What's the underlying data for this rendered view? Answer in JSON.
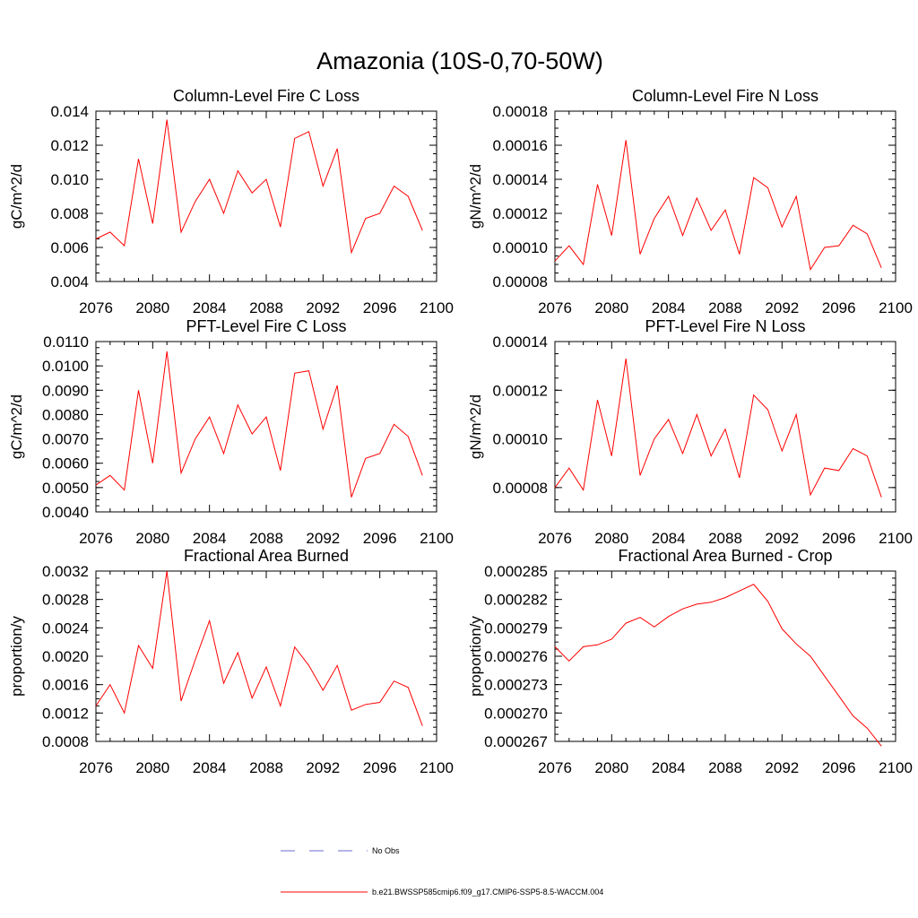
{
  "title": "Amazonia (10S-0,70-50W)",
  "colors": {
    "series": "#ff0000",
    "obs": "#6b6bd6",
    "axis": "#000000"
  },
  "legend": {
    "obs_label": "No Obs",
    "series_label": "b.e21.BWSSP585cmip6.f09_g17.CMIP6-SSP5-8.5-WACCM.004"
  },
  "chart_data": [
    {
      "type": "line",
      "title": "Column-Level Fire C Loss",
      "xlabel": "",
      "ylabel": "gC/m^2/d",
      "xlim": [
        2076,
        2100
      ],
      "ylim": [
        0.004,
        0.014
      ],
      "xticks": [
        2076,
        2080,
        2084,
        2088,
        2092,
        2096,
        2100
      ],
      "xtick_labels": [
        "2076",
        "2080",
        "2084",
        "2088",
        "2092",
        "2096",
        "2100"
      ],
      "yticks": [
        0.004,
        0.006,
        0.008,
        0.01,
        0.012,
        0.014
      ],
      "ytick_labels": [
        "0.004",
        "0.006",
        "0.008",
        "0.010",
        "0.012",
        "0.014"
      ],
      "x": [
        2076,
        2077,
        2078,
        2079,
        2080,
        2081,
        2082,
        2083,
        2084,
        2085,
        2086,
        2087,
        2088,
        2089,
        2090,
        2091,
        2092,
        2093,
        2094,
        2095,
        2096,
        2097,
        2098,
        2099
      ],
      "series": [
        {
          "name": "b.e21.BWSSP585cmip6.f09_g17.CMIP6-SSP5-8.5-WACCM.004",
          "values": [
            0.0065,
            0.0069,
            0.0061,
            0.0112,
            0.0074,
            0.0135,
            0.0069,
            0.0087,
            0.01,
            0.008,
            0.0105,
            0.0092,
            0.01,
            0.0072,
            0.0124,
            0.0128,
            0.0096,
            0.0118,
            0.0057,
            0.0077,
            0.008,
            0.0096,
            0.009,
            0.007
          ]
        }
      ]
    },
    {
      "type": "line",
      "title": "Column-Level Fire N Loss",
      "xlabel": "",
      "ylabel": "gN/m^2/d",
      "xlim": [
        2076,
        2100
      ],
      "ylim": [
        8e-05,
        0.00018
      ],
      "xticks": [
        2076,
        2080,
        2084,
        2088,
        2092,
        2096,
        2100
      ],
      "xtick_labels": [
        "2076",
        "2080",
        "2084",
        "2088",
        "2092",
        "2096",
        "2100"
      ],
      "yticks": [
        8e-05,
        0.0001,
        0.00012,
        0.00014,
        0.00016,
        0.00018
      ],
      "ytick_labels": [
        "0.00008",
        "0.00010",
        "0.00012",
        "0.00014",
        "0.00016",
        "0.00018"
      ],
      "x": [
        2076,
        2077,
        2078,
        2079,
        2080,
        2081,
        2082,
        2083,
        2084,
        2085,
        2086,
        2087,
        2088,
        2089,
        2090,
        2091,
        2092,
        2093,
        2094,
        2095,
        2096,
        2097,
        2098,
        2099
      ],
      "series": [
        {
          "name": "b.e21.BWSSP585cmip6.f09_g17.CMIP6-SSP5-8.5-WACCM.004",
          "values": [
            9.2e-05,
            0.000101,
            9e-05,
            0.000137,
            0.000107,
            0.000163,
            9.6e-05,
            0.000117,
            0.00013,
            0.000107,
            0.000129,
            0.00011,
            0.000122,
            9.6e-05,
            0.000141,
            0.000135,
            0.000112,
            0.00013,
            8.7e-05,
            0.0001,
            0.000101,
            0.000113,
            0.000108,
            8.8e-05
          ]
        }
      ]
    },
    {
      "type": "line",
      "title": "PFT-Level Fire C Loss",
      "xlabel": "",
      "ylabel": "gC/m^2/d",
      "xlim": [
        2076,
        2100
      ],
      "ylim": [
        0.004,
        0.011
      ],
      "xticks": [
        2076,
        2080,
        2084,
        2088,
        2092,
        2096,
        2100
      ],
      "xtick_labels": [
        "2076",
        "2080",
        "2084",
        "2088",
        "2092",
        "2096",
        "2100"
      ],
      "yticks": [
        0.004,
        0.005,
        0.006,
        0.007,
        0.008,
        0.009,
        0.01,
        0.011
      ],
      "ytick_labels": [
        "0.0040",
        "0.0050",
        "0.0060",
        "0.0070",
        "0.0080",
        "0.0090",
        "0.0100",
        "0.0110"
      ],
      "x": [
        2076,
        2077,
        2078,
        2079,
        2080,
        2081,
        2082,
        2083,
        2084,
        2085,
        2086,
        2087,
        2088,
        2089,
        2090,
        2091,
        2092,
        2093,
        2094,
        2095,
        2096,
        2097,
        2098,
        2099
      ],
      "series": [
        {
          "name": "b.e21.BWSSP585cmip6.f09_g17.CMIP6-SSP5-8.5-WACCM.004",
          "values": [
            0.0051,
            0.0055,
            0.0049,
            0.009,
            0.006,
            0.0106,
            0.0056,
            0.007,
            0.0079,
            0.0064,
            0.0084,
            0.0072,
            0.0079,
            0.0057,
            0.0097,
            0.0098,
            0.0074,
            0.0092,
            0.0046,
            0.0062,
            0.0064,
            0.0076,
            0.0071,
            0.0055
          ]
        }
      ]
    },
    {
      "type": "line",
      "title": "PFT-Level Fire N Loss",
      "xlabel": "",
      "ylabel": "gN/m^2/d",
      "xlim": [
        2076,
        2100
      ],
      "ylim": [
        7e-05,
        0.00014
      ],
      "xticks": [
        2076,
        2080,
        2084,
        2088,
        2092,
        2096,
        2100
      ],
      "xtick_labels": [
        "2076",
        "2080",
        "2084",
        "2088",
        "2092",
        "2096",
        "2100"
      ],
      "yticks": [
        8e-05,
        0.0001,
        0.00012,
        0.00014
      ],
      "ytick_labels": [
        "0.00008",
        "0.00010",
        "0.00012",
        "0.00014"
      ],
      "x": [
        2076,
        2077,
        2078,
        2079,
        2080,
        2081,
        2082,
        2083,
        2084,
        2085,
        2086,
        2087,
        2088,
        2089,
        2090,
        2091,
        2092,
        2093,
        2094,
        2095,
        2096,
        2097,
        2098,
        2099
      ],
      "series": [
        {
          "name": "b.e21.BWSSP585cmip6.f09_g17.CMIP6-SSP5-8.5-WACCM.004",
          "values": [
            8e-05,
            8.8e-05,
            7.9e-05,
            0.000116,
            9.3e-05,
            0.000133,
            8.5e-05,
            0.0001,
            0.000108,
            9.4e-05,
            0.00011,
            9.3e-05,
            0.000104,
            8.4e-05,
            0.000118,
            0.000112,
            9.5e-05,
            0.00011,
            7.7e-05,
            8.8e-05,
            8.7e-05,
            9.6e-05,
            9.3e-05,
            7.6e-05
          ]
        }
      ]
    },
    {
      "type": "line",
      "title": "Fractional Area Burned",
      "xlabel": "",
      "ylabel": "proportion/y",
      "xlim": [
        2076,
        2100
      ],
      "ylim": [
        0.0008,
        0.0032
      ],
      "xticks": [
        2076,
        2080,
        2084,
        2088,
        2092,
        2096,
        2100
      ],
      "xtick_labels": [
        "2076",
        "2080",
        "2084",
        "2088",
        "2092",
        "2096",
        "2100"
      ],
      "yticks": [
        0.0008,
        0.0012,
        0.0016,
        0.002,
        0.0024,
        0.0028,
        0.0032
      ],
      "ytick_labels": [
        "0.0008",
        "0.0012",
        "0.0016",
        "0.0020",
        "0.0024",
        "0.0028",
        "0.0032"
      ],
      "x": [
        2076,
        2077,
        2078,
        2079,
        2080,
        2081,
        2082,
        2083,
        2084,
        2085,
        2086,
        2087,
        2088,
        2089,
        2090,
        2091,
        2092,
        2093,
        2094,
        2095,
        2096,
        2097,
        2098,
        2099
      ],
      "series": [
        {
          "name": "b.e21.BWSSP585cmip6.f09_g17.CMIP6-SSP5-8.5-WACCM.004",
          "values": [
            0.0013,
            0.0016,
            0.0012,
            0.00215,
            0.00183,
            0.0032,
            0.00137,
            0.00195,
            0.0025,
            0.00162,
            0.00205,
            0.00141,
            0.00185,
            0.0013,
            0.00213,
            0.00187,
            0.00152,
            0.00187,
            0.00124,
            0.00132,
            0.00135,
            0.00165,
            0.00156,
            0.00102
          ]
        }
      ]
    },
    {
      "type": "line",
      "title": "Fractional Area Burned - Crop",
      "xlabel": "",
      "ylabel": "proportion/y",
      "xlim": [
        2076,
        2100
      ],
      "ylim": [
        0.000267,
        0.000285
      ],
      "xticks": [
        2076,
        2080,
        2084,
        2088,
        2092,
        2096,
        2100
      ],
      "xtick_labels": [
        "2076",
        "2080",
        "2084",
        "2088",
        "2092",
        "2096",
        "2100"
      ],
      "yticks": [
        0.000267,
        0.00027,
        0.000273,
        0.000276,
        0.000279,
        0.000282,
        0.000285
      ],
      "ytick_labels": [
        "0.000267",
        "0.000270",
        "0.000273",
        "0.000276",
        "0.000279",
        "0.000282",
        "0.000285"
      ],
      "x": [
        2076,
        2077,
        2078,
        2079,
        2080,
        2081,
        2082,
        2083,
        2084,
        2085,
        2086,
        2087,
        2088,
        2089,
        2090,
        2091,
        2092,
        2093,
        2094,
        2095,
        2096,
        2097,
        2098,
        2099
      ],
      "series": [
        {
          "name": "b.e21.BWSSP585cmip6.f09_g17.CMIP6-SSP5-8.5-WACCM.004",
          "values": [
            0.000277,
            0.0002755,
            0.000277,
            0.0002772,
            0.0002778,
            0.0002795,
            0.0002801,
            0.0002791,
            0.0002802,
            0.000281,
            0.0002815,
            0.0002817,
            0.0002822,
            0.0002829,
            0.0002836,
            0.0002818,
            0.0002789,
            0.0002773,
            0.000276,
            0.0002739,
            0.0002718,
            0.0002697,
            0.0002684,
            0.0002665
          ]
        }
      ]
    }
  ]
}
